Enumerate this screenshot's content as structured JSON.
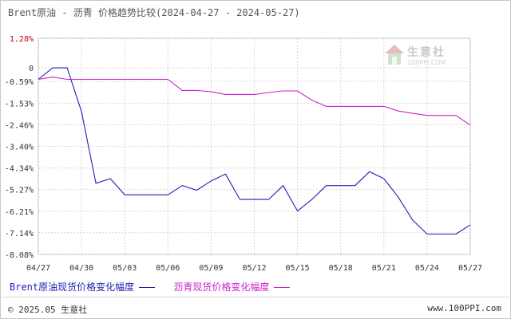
{
  "header": {
    "title": "Brent原油 - 沥青 价格趋势比较(2024-04-27 - 2024-05-27)"
  },
  "watermark": {
    "name": "生意社",
    "site": "100PPI.COM",
    "color": "#9aa0a6"
  },
  "footer": {
    "copyright": "© 2025.05 生意社",
    "site": "www.100PPI.com"
  },
  "chart_data": {
    "type": "line",
    "title": "Brent原油 - 沥青 价格趋势比较(2024-04-27 - 2024-05-27)",
    "xlabel": "",
    "ylabel": "",
    "x_ticks": [
      "04/27",
      "04/30",
      "05/03",
      "05/06",
      "05/09",
      "05/12",
      "05/15",
      "05/18",
      "05/21",
      "05/24",
      "05/27"
    ],
    "y_ticks": [
      "1.28%",
      "0",
      "-0.59%",
      "-1.53%",
      "-2.46%",
      "-3.40%",
      "-4.34%",
      "-5.27%",
      "-6.21%",
      "-7.14%",
      "-8.08%"
    ],
    "y_tick_values": [
      1.28,
      0,
      -0.59,
      -1.53,
      -2.46,
      -3.4,
      -4.34,
      -5.27,
      -6.21,
      -7.14,
      -8.08
    ],
    "ylim": [
      -8.08,
      1.28
    ],
    "x_days": [
      "04/27",
      "04/28",
      "04/29",
      "04/30",
      "05/01",
      "05/02",
      "05/03",
      "05/04",
      "05/05",
      "05/06",
      "05/07",
      "05/08",
      "05/09",
      "05/10",
      "05/11",
      "05/12",
      "05/13",
      "05/14",
      "05/15",
      "05/16",
      "05/17",
      "05/18",
      "05/19",
      "05/20",
      "05/21",
      "05/22",
      "05/23",
      "05/24",
      "05/25",
      "05/26",
      "05/27"
    ],
    "grid": true,
    "legend_position": "bottom",
    "series": [
      {
        "name": "Brent原油现货价格变化幅度",
        "color": "#1f1fb3",
        "values": [
          -0.5,
          0.0,
          0.0,
          -1.9,
          -5.0,
          -4.8,
          -5.5,
          -5.5,
          -5.5,
          -5.5,
          -5.1,
          -5.3,
          -4.9,
          -4.6,
          -5.7,
          -5.7,
          -5.7,
          -5.1,
          -6.2,
          -5.7,
          -5.1,
          -5.1,
          -5.1,
          -4.5,
          -4.8,
          -5.6,
          -6.6,
          -7.2,
          -7.2,
          -7.2,
          -6.8
        ]
      },
      {
        "name": "沥青现货价格变化幅度",
        "color": "#cc22cc",
        "values": [
          -0.5,
          -0.4,
          -0.5,
          -0.5,
          -0.5,
          -0.5,
          -0.5,
          -0.5,
          -0.5,
          -0.5,
          -0.98,
          -0.98,
          -1.03,
          -1.15,
          -1.15,
          -1.15,
          -1.07,
          -1.0,
          -1.0,
          -1.4,
          -1.67,
          -1.67,
          -1.67,
          -1.67,
          -1.67,
          -1.87,
          -1.97,
          -2.06,
          -2.06,
          -2.06,
          -2.48
        ]
      }
    ]
  }
}
